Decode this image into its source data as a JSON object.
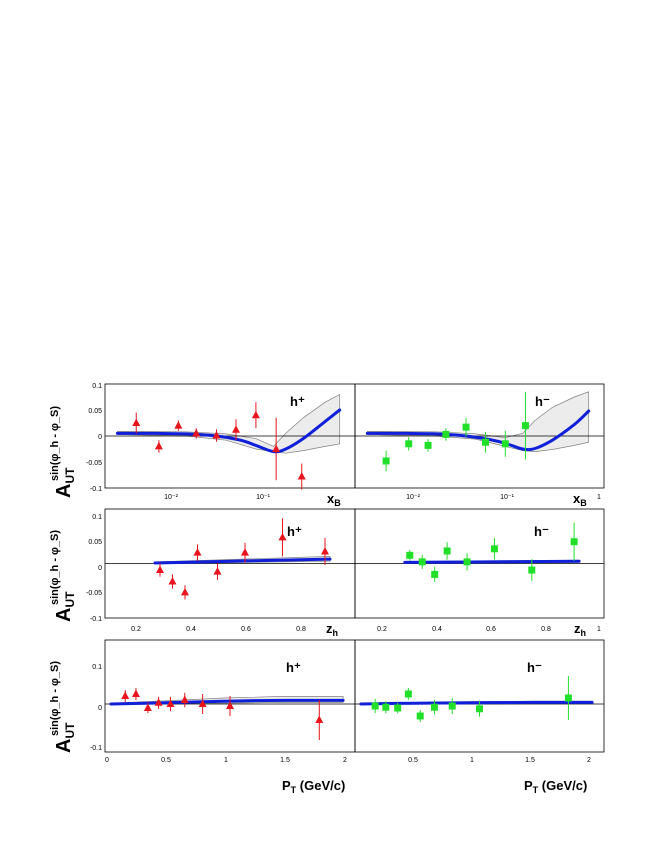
{
  "figure": {
    "y_label": {
      "main": "A",
      "sub": "UT",
      "sup": "sin(φ_h - φ_S)"
    },
    "hadron_labels": {
      "positive": "h⁺",
      "negative": "h⁻"
    },
    "colors": {
      "h_plus": "#e8141e",
      "h_minus": "#22e02a",
      "curve": "#1020d8",
      "band_fill": "#ececec",
      "band_edge": "#808080"
    }
  },
  "rows": [
    {
      "id": "xB",
      "axis_title": {
        "main": "x",
        "sub": "B"
      },
      "ticks_y": [
        "0.1",
        "0.05",
        "0",
        "-0.05",
        "-0.1"
      ],
      "ticks_x": [
        "10⁻²",
        "10⁻¹",
        "1"
      ]
    },
    {
      "id": "zh",
      "axis_title": {
        "main": "z",
        "sub": "h"
      },
      "ticks_y": [
        "0.1",
        "0.05",
        "0",
        "-0.05",
        "-0.1"
      ],
      "ticks_x": [
        "0.2",
        "0.4",
        "0.6",
        "0.8",
        "1"
      ]
    },
    {
      "id": "PT",
      "axis_title": {
        "main": "P",
        "sub": "T",
        "rest": " (GeV/c)"
      },
      "ticks_y": [
        "0.1",
        "0",
        "-0.1"
      ],
      "ticks_x_left": [
        "0",
        "0.5",
        "1",
        "1.5",
        "2"
      ],
      "ticks_x_right": [
        "0.5",
        "1",
        "1.5",
        "2"
      ]
    }
  ],
  "chart_data": [
    {
      "type": "scatter",
      "panel": "xB h+",
      "x_scale": "log",
      "xlim": [
        0.003,
        1
      ],
      "ylim": [
        -0.1,
        0.1
      ],
      "xlabel": "x_B",
      "ylabel": "A_UT^{sin(φh-φS)}",
      "series": [
        {
          "name": "h+",
          "marker": "triangle",
          "x": [
            0.0062,
            0.0105,
            0.0165,
            0.025,
            0.04,
            0.063,
            0.1,
            0.16,
            0.29
          ],
          "y": [
            0.025,
            -0.02,
            0.02,
            0.005,
            0.001,
            0.012,
            0.04,
            -0.025,
            -0.078
          ],
          "err": [
            0.02,
            0.012,
            0.01,
            0.01,
            0.012,
            0.02,
            0.025,
            0.06,
            0.025
          ]
        }
      ],
      "curve": {
        "x": [
          0.004,
          0.01,
          0.02,
          0.04,
          0.07,
          0.1,
          0.15,
          0.2,
          0.3,
          0.5,
          0.7
        ],
        "y": [
          0.005,
          0.005,
          0.004,
          0,
          -0.008,
          -0.018,
          -0.03,
          -0.025,
          -0.005,
          0.028,
          0.05
        ]
      },
      "band": {
        "x": [
          0.004,
          0.02,
          0.05,
          0.1,
          0.15,
          0.2,
          0.3,
          0.5,
          0.7
        ],
        "lo": [
          0.003,
          0.0,
          -0.008,
          -0.025,
          -0.03,
          -0.033,
          -0.028,
          -0.02,
          -0.015
        ],
        "hi": [
          0.009,
          0.008,
          0.004,
          -0.005,
          -0.02,
          0.005,
          0.035,
          0.065,
          0.08
        ]
      }
    },
    {
      "type": "scatter",
      "panel": "xB h-",
      "x_scale": "log",
      "xlim": [
        0.003,
        1
      ],
      "ylim": [
        -0.1,
        0.1
      ],
      "xlabel": "x_B",
      "series": [
        {
          "name": "h-",
          "marker": "square",
          "x": [
            0.0062,
            0.0105,
            0.0165,
            0.025,
            0.04,
            0.063,
            0.1,
            0.16
          ],
          "y": [
            -0.048,
            -0.015,
            -0.018,
            0.003,
            0.017,
            -0.012,
            -0.015,
            0.02
          ],
          "err": [
            0.02,
            0.013,
            0.012,
            0.012,
            0.018,
            0.02,
            0.025,
            0.065
          ]
        }
      ],
      "curve": {
        "x": [
          0.004,
          0.01,
          0.02,
          0.04,
          0.07,
          0.1,
          0.15,
          0.2,
          0.3,
          0.5,
          0.7
        ],
        "y": [
          0.005,
          0.005,
          0.004,
          0.0,
          -0.007,
          -0.014,
          -0.025,
          -0.024,
          -0.008,
          0.022,
          0.048
        ]
      },
      "band": {
        "x": [
          0.004,
          0.02,
          0.05,
          0.1,
          0.15,
          0.2,
          0.3,
          0.5,
          0.7
        ],
        "lo": [
          0.003,
          0.0,
          -0.006,
          -0.02,
          -0.028,
          -0.03,
          -0.026,
          -0.018,
          -0.012
        ],
        "hi": [
          0.009,
          0.008,
          0.004,
          -0.003,
          0.005,
          0.03,
          0.055,
          0.075,
          0.085
        ]
      }
    },
    {
      "type": "scatter",
      "panel": "zh h+",
      "xlim": [
        0,
        1
      ],
      "ylim": [
        -0.1,
        0.1
      ],
      "xlabel": "z_h",
      "series": [
        {
          "name": "h+",
          "marker": "triangle",
          "x": [
            0.22,
            0.27,
            0.32,
            0.37,
            0.45,
            0.56,
            0.71,
            0.88
          ],
          "y": [
            -0.012,
            -0.033,
            -0.053,
            0.02,
            -0.015,
            0.02,
            0.048,
            0.022
          ],
          "err": [
            0.012,
            0.013,
            0.013,
            0.015,
            0.015,
            0.018,
            0.035,
            0.025
          ]
        }
      ],
      "curve": {
        "x": [
          0.2,
          0.9
        ],
        "y": [
          0.001,
          0.008
        ]
      },
      "band": {
        "x": [
          0.2,
          0.9
        ],
        "lo": [
          0.0,
          0.004
        ],
        "hi": [
          0.003,
          0.013
        ]
      }
    },
    {
      "type": "scatter",
      "panel": "zh h-",
      "xlim": [
        0,
        1
      ],
      "ylim": [
        -0.1,
        0.1
      ],
      "xlabel": "z_h",
      "series": [
        {
          "name": "h-",
          "marker": "square",
          "x": [
            0.22,
            0.27,
            0.32,
            0.37,
            0.45,
            0.56,
            0.71,
            0.88
          ],
          "y": [
            0.015,
            0.003,
            -0.02,
            0.023,
            0.003,
            0.027,
            -0.012,
            0.04
          ],
          "err": [
            0.01,
            0.013,
            0.014,
            0.016,
            0.016,
            0.02,
            0.02,
            0.035
          ]
        }
      ],
      "curve": {
        "x": [
          0.2,
          0.9
        ],
        "y": [
          0.002,
          0.004
        ]
      },
      "band": {
        "x": [
          0.2,
          0.9
        ],
        "lo": [
          0.0,
          0.002
        ],
        "hi": [
          0.004,
          0.006
        ]
      }
    },
    {
      "type": "scatter",
      "panel": "PT h+",
      "xlim": [
        0,
        2.1
      ],
      "ylim": [
        -0.12,
        0.16
      ],
      "xlabel": "P_T (GeV/c)",
      "series": [
        {
          "name": "h+",
          "marker": "triangle",
          "x": [
            0.17,
            0.26,
            0.36,
            0.45,
            0.55,
            0.67,
            0.82,
            1.05,
            1.8
          ],
          "y": [
            0.02,
            0.025,
            -0.01,
            0.003,
            0.0,
            0.01,
            0.0,
            -0.005,
            -0.04
          ],
          "err": [
            0.015,
            0.015,
            0.013,
            0.015,
            0.018,
            0.018,
            0.025,
            0.025,
            0.05
          ]
        }
      ],
      "curve": {
        "x": [
          0.05,
          0.5,
          1.0,
          1.5,
          2.0
        ],
        "y": [
          0.0,
          0.003,
          0.007,
          0.009,
          0.009
        ]
      },
      "band": {
        "x": [
          0.05,
          0.5,
          1.0,
          1.5,
          2.0
        ],
        "lo": [
          0.0,
          0.0,
          0.002,
          0.004,
          0.004
        ],
        "hi": [
          0.002,
          0.008,
          0.015,
          0.019,
          0.019
        ]
      }
    },
    {
      "type": "scatter",
      "panel": "PT h-",
      "xlim": [
        0,
        2.1
      ],
      "ylim": [
        -0.12,
        0.16
      ],
      "xlabel": "P_T (GeV/c)",
      "series": [
        {
          "name": "h-",
          "marker": "square",
          "x": [
            0.17,
            0.26,
            0.36,
            0.45,
            0.55,
            0.67,
            0.82,
            1.05,
            1.8
          ],
          "y": [
            -0.005,
            -0.008,
            -0.01,
            0.025,
            -0.03,
            -0.008,
            -0.005,
            -0.012,
            0.015
          ],
          "err": [
            0.018,
            0.015,
            0.013,
            0.015,
            0.015,
            0.018,
            0.02,
            0.02,
            0.055
          ]
        }
      ],
      "curve": {
        "x": [
          0.05,
          0.5,
          1.0,
          1.5,
          2.0
        ],
        "y": [
          0.0,
          0.002,
          0.003,
          0.004,
          0.004
        ]
      },
      "band": {
        "x": [
          0.05,
          0.5,
          1.0,
          1.5,
          2.0
        ],
        "lo": [
          -0.002,
          0.0,
          0.0,
          0.001,
          0.001
        ],
        "hi": [
          0.002,
          0.004,
          0.006,
          0.007,
          0.007
        ]
      }
    }
  ]
}
